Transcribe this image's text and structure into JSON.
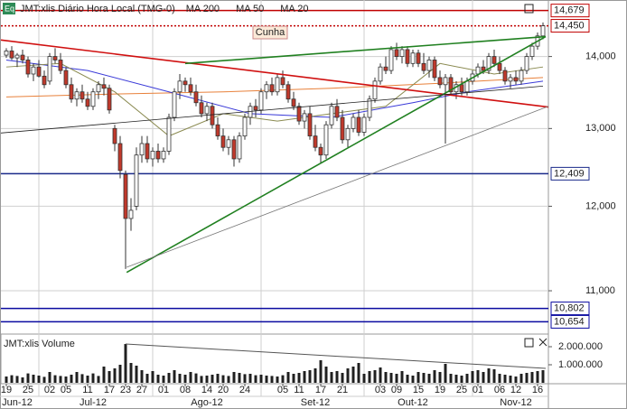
{
  "chart_data": {
    "type": "candlestick",
    "title": "JMT:xlis Diário Hora Local (TMG-0)",
    "log_scale": true,
    "grid": true,
    "ylim": [
      10540,
      14770
    ],
    "yticks": [
      {
        "value": 14000,
        "label": "14,000"
      },
      {
        "value": 13000,
        "label": "13,000"
      },
      {
        "value": 12000,
        "label": "12,000"
      },
      {
        "value": 11000,
        "label": "11,000"
      }
    ],
    "xlim": [
      -1,
      100
    ],
    "xgrid": [
      6,
      27,
      47,
      66,
      86
    ],
    "xticks": [
      {
        "value": 0,
        "label": "19"
      },
      {
        "value": 4,
        "label": "25"
      },
      {
        "value": 8,
        "label": "02"
      },
      {
        "value": 11,
        "label": "05"
      },
      {
        "value": 15,
        "label": "11"
      },
      {
        "value": 19,
        "label": "17"
      },
      {
        "value": 22,
        "label": "23"
      },
      {
        "value": 25,
        "label": "27"
      },
      {
        "value": 29,
        "label": "01"
      },
      {
        "value": 33,
        "label": "08"
      },
      {
        "value": 37,
        "label": "14"
      },
      {
        "value": 40,
        "label": "20"
      },
      {
        "value": 44,
        "label": "24"
      },
      {
        "value": 51,
        "label": "05"
      },
      {
        "value": 54,
        "label": "11"
      },
      {
        "value": 58,
        "label": "17"
      },
      {
        "value": 62,
        "label": "21"
      },
      {
        "value": 69,
        "label": "03"
      },
      {
        "value": 72,
        "label": "09"
      },
      {
        "value": 76,
        "label": "15"
      },
      {
        "value": 80,
        "label": "19"
      },
      {
        "value": 84,
        "label": "25"
      },
      {
        "value": 87,
        "label": "01"
      },
      {
        "value": 91,
        "label": "06"
      },
      {
        "value": 94,
        "label": "12"
      },
      {
        "value": 98,
        "label": "16"
      }
    ],
    "months": [
      {
        "value": 2,
        "label": "Jun-12"
      },
      {
        "value": 16,
        "label": "Jul-12"
      },
      {
        "value": 37,
        "label": "Ago-12"
      },
      {
        "value": 57,
        "label": "Set-12"
      },
      {
        "value": 75,
        "label": "Out-12"
      },
      {
        "value": 94,
        "label": "Nov-12"
      }
    ],
    "up_color": "#ffffff",
    "down_color": "#c0392b",
    "ohlc": [
      [
        14020,
        14120,
        13980,
        14080
      ],
      [
        14080,
        14150,
        13950,
        13980
      ],
      [
        13980,
        14050,
        13850,
        14020
      ],
      [
        14020,
        14100,
        13900,
        13950
      ],
      [
        13950,
        14000,
        13700,
        13750
      ],
      [
        13750,
        13900,
        13650,
        13850
      ],
      [
        13850,
        13950,
        13700,
        13720
      ],
      [
        13720,
        13800,
        13550,
        13600
      ],
      [
        13650,
        14050,
        13600,
        14000
      ],
      [
        14000,
        14120,
        13900,
        13950
      ],
      [
        13950,
        14050,
        13750,
        13800
      ],
      [
        13800,
        13850,
        13550,
        13600
      ],
      [
        13600,
        13700,
        13350,
        13400
      ],
      [
        13400,
        13550,
        13300,
        13500
      ],
      [
        13500,
        13600,
        13350,
        13400
      ],
      [
        13400,
        13500,
        13250,
        13300
      ],
      [
        13300,
        13550,
        13250,
        13500
      ],
      [
        13500,
        13650,
        13400,
        13600
      ],
      [
        13600,
        13700,
        13450,
        13550
      ],
      [
        13550,
        13600,
        13200,
        13250
      ],
      [
        13000,
        13050,
        12700,
        12800
      ],
      [
        12800,
        12900,
        12350,
        12450
      ],
      [
        12400,
        12450,
        11250,
        11850
      ],
      [
        11850,
        12100,
        11700,
        11950
      ],
      [
        12000,
        12750,
        11950,
        12650
      ],
      [
        12650,
        12900,
        12550,
        12800
      ],
      [
        12800,
        12900,
        12550,
        12600
      ],
      [
        12600,
        12750,
        12500,
        12700
      ],
      [
        12700,
        12800,
        12550,
        12600
      ],
      [
        12600,
        12750,
        12550,
        12700
      ],
      [
        12700,
        13200,
        12650,
        13150
      ],
      [
        13150,
        13550,
        13100,
        13500
      ],
      [
        13500,
        13750,
        13400,
        13650
      ],
      [
        13650,
        13700,
        13500,
        13600
      ],
      [
        13600,
        13700,
        13450,
        13500
      ],
      [
        13500,
        13600,
        13300,
        13350
      ],
      [
        13350,
        13450,
        13150,
        13200
      ],
      [
        13200,
        13350,
        13100,
        13300
      ],
      [
        13300,
        13350,
        13000,
        13050
      ],
      [
        13050,
        13150,
        12850,
        12900
      ],
      [
        12900,
        13000,
        12700,
        12750
      ],
      [
        12750,
        12900,
        12650,
        12850
      ],
      [
        12850,
        12900,
        12500,
        12600
      ],
      [
        12600,
        12950,
        12550,
        12900
      ],
      [
        12900,
        13200,
        12850,
        13150
      ],
      [
        13150,
        13350,
        13050,
        13300
      ],
      [
        13300,
        13400,
        13150,
        13250
      ],
      [
        13250,
        13550,
        13200,
        13500
      ],
      [
        13500,
        13650,
        13400,
        13600
      ],
      [
        13600,
        13700,
        13450,
        13500
      ],
      [
        13500,
        13750,
        13450,
        13700
      ],
      [
        13700,
        13800,
        13550,
        13600
      ],
      [
        13600,
        13650,
        13350,
        13400
      ],
      [
        13400,
        13500,
        13250,
        13300
      ],
      [
        13300,
        13350,
        13050,
        13100
      ],
      [
        13100,
        13250,
        13000,
        13200
      ],
      [
        13200,
        13300,
        12850,
        12900
      ],
      [
        12900,
        13050,
        12700,
        12750
      ],
      [
        12750,
        12800,
        12550,
        12650
      ],
      [
        12650,
        13100,
        12600,
        13050
      ],
      [
        13050,
        13350,
        13000,
        13300
      ],
      [
        13300,
        13400,
        13100,
        13150
      ],
      [
        13150,
        13250,
        12800,
        12850
      ],
      [
        12850,
        13050,
        12750,
        13000
      ],
      [
        13000,
        13200,
        12950,
        13150
      ],
      [
        13150,
        13250,
        12900,
        12950
      ],
      [
        12950,
        13200,
        12900,
        13150
      ],
      [
        13150,
        13450,
        13100,
        13400
      ],
      [
        13400,
        13700,
        13350,
        13650
      ],
      [
        13650,
        13900,
        13600,
        13850
      ],
      [
        13850,
        14000,
        13750,
        13800
      ],
      [
        13800,
        14150,
        13750,
        14100
      ],
      [
        14100,
        14200,
        13950,
        14000
      ],
      [
        14000,
        14150,
        13900,
        14100
      ],
      [
        14100,
        14150,
        13850,
        13900
      ],
      [
        13900,
        14100,
        13850,
        14050
      ],
      [
        14050,
        14100,
        13850,
        13900
      ],
      [
        13900,
        14050,
        13750,
        13800
      ],
      [
        13800,
        14000,
        13700,
        13950
      ],
      [
        13950,
        14000,
        13650,
        13700
      ],
      [
        13700,
        13800,
        13550,
        13600
      ],
      [
        13600,
        13750,
        12800,
        13700
      ],
      [
        13700,
        13750,
        13450,
        13500
      ],
      [
        13500,
        13650,
        13400,
        13600
      ],
      [
        13600,
        13700,
        13450,
        13500
      ],
      [
        13500,
        13700,
        13450,
        13650
      ],
      [
        13650,
        13800,
        13600,
        13750
      ],
      [
        13750,
        13900,
        13700,
        13850
      ],
      [
        13850,
        13950,
        13750,
        13800
      ],
      [
        13800,
        14050,
        13750,
        14000
      ],
      [
        14000,
        14100,
        13850,
        13900
      ],
      [
        13900,
        14000,
        13750,
        13800
      ],
      [
        13800,
        13850,
        13600,
        13650
      ],
      [
        13650,
        13750,
        13550,
        13700
      ],
      [
        13700,
        13800,
        13600,
        13650
      ],
      [
        13650,
        13850,
        13600,
        13800
      ],
      [
        13800,
        14050,
        13750,
        14000
      ],
      [
        14000,
        14200,
        13950,
        14150
      ],
      [
        14150,
        14350,
        14100,
        14300
      ],
      [
        14300,
        14500,
        14250,
        14450
      ]
    ],
    "series": [
      {
        "name": "MA 200",
        "color": "#e8803a",
        "x": [
          0,
          20,
          40,
          60,
          80,
          99
        ],
        "values": [
          13430,
          13470,
          13500,
          13550,
          13620,
          13700
        ]
      },
      {
        "name": "MA 50",
        "color": "#3a3ad8",
        "x": [
          0,
          15,
          30,
          45,
          60,
          75,
          85,
          99
        ],
        "values": [
          13950,
          13800,
          13500,
          13200,
          13150,
          13350,
          13500,
          13650
        ]
      },
      {
        "name": "MA 20",
        "color": "#8a8a50",
        "x": [
          0,
          10,
          20,
          30,
          40,
          50,
          60,
          70,
          80,
          90,
          99
        ],
        "values": [
          13850,
          13900,
          13500,
          12900,
          13200,
          13100,
          13200,
          13300,
          13900,
          13750,
          13850
        ]
      }
    ],
    "levels": [
      {
        "value": 14679,
        "label": "14,679",
        "color": "#c00000",
        "dash": false
      },
      {
        "value": 14450,
        "label": "14,450",
        "color": "#c00000",
        "dash": true
      },
      {
        "value": 12409,
        "label": "12,409",
        "color": "#1a2a8a",
        "dash": false
      },
      {
        "value": 10802,
        "label": "10,802",
        "color": "#0a0aa0",
        "dash": false
      },
      {
        "value": 10654,
        "label": "10,654",
        "color": "#0a0aa0",
        "dash": false
      }
    ],
    "trendlines": [
      {
        "color": "#d01010",
        "points": [
          [
            -1,
            14240
          ],
          [
            100,
            13290
          ]
        ]
      },
      {
        "color": "#208020",
        "points": [
          [
            33,
            13900
          ],
          [
            99.5,
            14290
          ]
        ]
      },
      {
        "color": "#208020",
        "points": [
          [
            22.2,
            11210
          ],
          [
            99.5,
            14290
          ]
        ]
      },
      {
        "color": "#222222",
        "points": [
          [
            -1,
            12940
          ],
          [
            99,
            13580
          ]
        ]
      },
      {
        "color": "#777777",
        "points": [
          [
            22.2,
            11270
          ],
          [
            100,
            13300
          ]
        ]
      }
    ],
    "annotations": [
      "Cunha"
    ],
    "volume": {
      "title": "JMT:xlis Volume",
      "color": "#202020",
      "ylim": [
        0,
        2600000
      ],
      "yticks": [
        {
          "value": 2000000,
          "label": "2.000.000"
        },
        {
          "value": 1000000,
          "label": "1.000.000"
        }
      ],
      "trendline": [
        [
          22,
          2150000
        ],
        [
          99.5,
          800000
        ]
      ],
      "values": [
        350000,
        420000,
        380000,
        300000,
        520000,
        450000,
        400000,
        330000,
        600000,
        420000,
        380000,
        350000,
        450000,
        600000,
        480000,
        400000,
        520000,
        380000,
        900000,
        650000,
        800000,
        1000000,
        2150000,
        1100000,
        950000,
        700000,
        500000,
        650000,
        450000,
        400000,
        550000,
        700000,
        500000,
        450000,
        600000,
        520000,
        380000,
        400000,
        450000,
        500000,
        420000,
        380000,
        600000,
        550000,
        480000,
        500000,
        420000,
        450000,
        400000,
        380000,
        350000,
        420000,
        600000,
        500000,
        550000,
        650000,
        700000,
        800000,
        1250000,
        900000,
        600000,
        650000,
        550000,
        800000,
        900000,
        1100000,
        500000,
        650000,
        700000,
        850000,
        600000,
        550000,
        500000,
        650000,
        450000,
        400000,
        600000,
        550000,
        500000,
        700000,
        600000,
        1050000,
        500000,
        450000,
        400000,
        500000,
        650000,
        700000,
        600000,
        800000,
        750000,
        500000,
        450000,
        400000,
        350000,
        500000,
        550000,
        600000,
        650000,
        700000
      ]
    }
  }
}
